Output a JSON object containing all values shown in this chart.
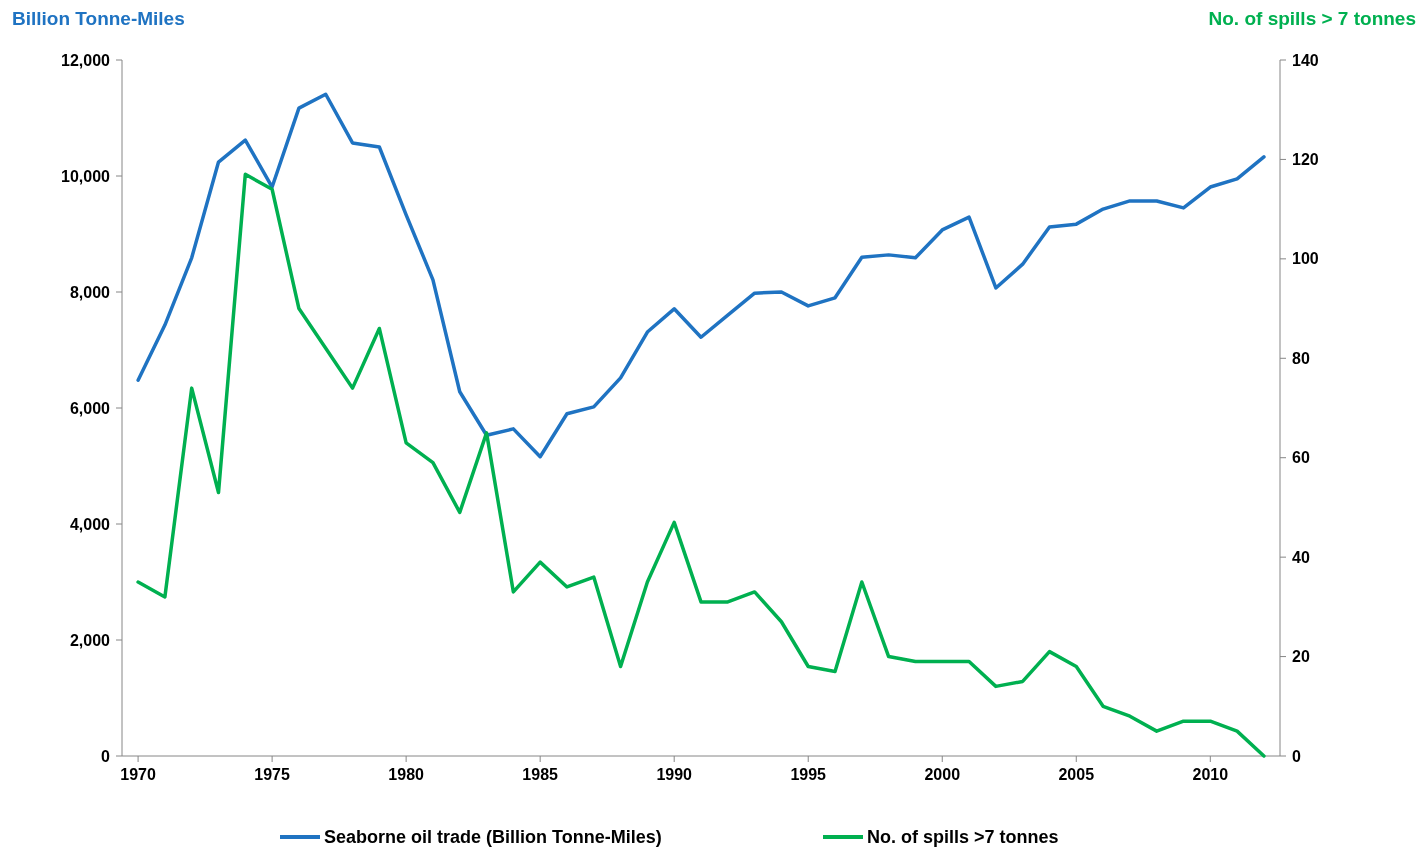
{
  "chart_data": {
    "type": "line",
    "ylabel": "Billion Tonne-Miles",
    "y2label": "No. of spills > 7 tonnes",
    "x": [
      1970,
      1971,
      1972,
      1973,
      1974,
      1975,
      1976,
      1977,
      1978,
      1979,
      1980,
      1981,
      1982,
      1983,
      1984,
      1985,
      1986,
      1987,
      1988,
      1989,
      1990,
      1991,
      1992,
      1993,
      1994,
      1995,
      1996,
      1997,
      1998,
      1999,
      2000,
      2001,
      2002,
      2003,
      2004,
      2005,
      2006,
      2007,
      2008,
      2009,
      2010,
      2011,
      2012
    ],
    "xlim": [
      1969.4,
      2012.6
    ],
    "xticks": [
      1970,
      1975,
      1980,
      1985,
      1990,
      1995,
      2000,
      2005,
      2010
    ],
    "ylim": [
      0,
      12000
    ],
    "yticks": [
      {
        "value": 0,
        "label": "0"
      },
      {
        "value": 2000,
        "label": "2,000"
      },
      {
        "value": 4000,
        "label": "4,000"
      },
      {
        "value": 6000,
        "label": "6,000"
      },
      {
        "value": 8000,
        "label": "8,000"
      },
      {
        "value": 10000,
        "label": "10,000"
      },
      {
        "value": 12000,
        "label": "12,000"
      }
    ],
    "y2lim": [
      0,
      140
    ],
    "y2ticks": [
      0,
      20,
      40,
      60,
      80,
      100,
      120,
      140
    ],
    "grid": false,
    "legend": "bottom",
    "marker": "none",
    "line_style": "solid",
    "series": [
      {
        "name": "Seaborne oil trade (Billion Tonne-Miles)",
        "color": "#1f73c2",
        "values": [
          6480,
          7430,
          8590,
          10240,
          10620,
          9810,
          11170,
          11410,
          10570,
          10500,
          9330,
          8210,
          6280,
          5530,
          5640,
          5160,
          5900,
          6020,
          6520,
          7310,
          7710,
          7220,
          7600,
          7980,
          8000,
          7760,
          7900,
          8600,
          8640,
          8590,
          9070,
          9290,
          8070,
          8480,
          9120,
          9170,
          9430,
          9570,
          9570,
          9450,
          9810,
          9950,
          10330
        ]
      },
      {
        "name": "No. of spills >7 tonnes",
        "color": "#00b050",
        "axis": "y2",
        "values": [
          35,
          32,
          74,
          53,
          117,
          114,
          90,
          82,
          74,
          86,
          63,
          59,
          49,
          65,
          33,
          39,
          34,
          36,
          18,
          35,
          47,
          31,
          31,
          33,
          27,
          18,
          17,
          35,
          20,
          19,
          19,
          19,
          14,
          15,
          21,
          18,
          10,
          8,
          5,
          7,
          7,
          5,
          0
        ]
      }
    ]
  }
}
